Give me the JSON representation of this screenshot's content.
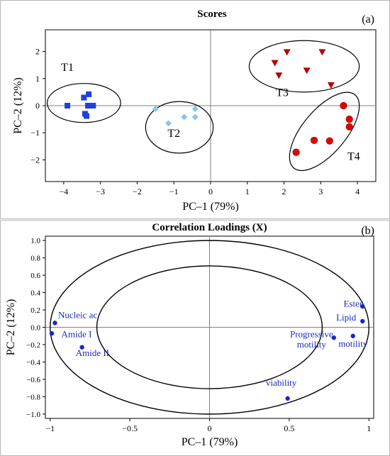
{
  "chart_data": [
    {
      "type": "scatter",
      "title": "Scores",
      "panel_label": "(a)",
      "xlabel": "PC–1 (79%)",
      "ylabel": "PC–2 (12%)",
      "xlim": [
        -4.5,
        4.5
      ],
      "ylim": [
        -2.8,
        2.8
      ],
      "xticks": [
        -4,
        -3,
        -2,
        -1,
        0,
        1,
        2,
        3,
        4
      ],
      "yticks": [
        -2,
        -1,
        0,
        1,
        2
      ],
      "series": [
        {
          "name": "T1",
          "marker": "square",
          "color": "#1f3fe0",
          "x": [
            -3.9,
            -3.45,
            -3.32,
            -3.2,
            -3.42,
            -3.38,
            -3.34
          ],
          "y": [
            0.0,
            0.3,
            0.42,
            0.0,
            -0.3,
            -0.38,
            0.0
          ]
        },
        {
          "name": "T2",
          "marker": "diamond",
          "color": "#8cc4ee",
          "x": [
            -1.5,
            -1.15,
            -0.72,
            -0.42,
            -0.42
          ],
          "y": [
            -0.12,
            -0.65,
            -0.42,
            -0.12,
            -0.42
          ]
        },
        {
          "name": "T3",
          "marker": "triangle-down",
          "color": "#b40000",
          "x": [
            1.75,
            1.86,
            2.08,
            2.62,
            3.04,
            3.28
          ],
          "y": [
            1.58,
            1.12,
            1.98,
            1.3,
            1.98,
            0.76
          ]
        },
        {
          "name": "T4",
          "marker": "circle",
          "color": "#e60000",
          "x": [
            2.33,
            2.82,
            3.24,
            3.62,
            3.78,
            3.78
          ],
          "y": [
            -1.72,
            -1.28,
            -1.3,
            0.0,
            -0.5,
            -0.78
          ]
        }
      ],
      "groups": [
        {
          "label": "T1",
          "cx": -3.45,
          "cy": 0.1,
          "rx": 1.0,
          "ry": 0.72,
          "angle": 0,
          "lx": -3.9,
          "ly": 1.28
        },
        {
          "label": "T2",
          "cx": -0.85,
          "cy": -0.8,
          "rx": 0.92,
          "ry": 0.95,
          "angle": 0,
          "lx": -1.0,
          "ly": -1.15
        },
        {
          "label": "T3",
          "cx": 2.55,
          "cy": 1.45,
          "rx": 1.5,
          "ry": 0.95,
          "angle": 0,
          "lx": 1.95,
          "ly": 0.35
        },
        {
          "label": "T4",
          "cx": 3.1,
          "cy": -0.95,
          "rx": 1.3,
          "ry": 0.8,
          "angle": -50,
          "lx": 3.9,
          "ly": -2.0
        }
      ]
    },
    {
      "type": "scatter",
      "title": "Correlation Loadings (X)",
      "panel_label": "(b)",
      "xlabel": "PC–1 (79%)",
      "ylabel": "PC–2 (12%)",
      "xlim": [
        -1.03,
        1.03
      ],
      "ylim": [
        -1.05,
        1.05
      ],
      "xticks": [
        -1,
        -0.5,
        0,
        0.5,
        1
      ],
      "xtick_labels": [
        "−1",
        "−0.5",
        "0",
        "0.5",
        "1"
      ],
      "yticks": [
        1.0,
        0.8,
        0.6,
        0.4,
        0.2,
        0.0,
        -0.2,
        -0.4,
        -0.6,
        -0.8,
        -1.0
      ],
      "ytick_labels": [
        "1.0",
        "0.8",
        "0.6",
        "0.4",
        "0.2",
        "0.0",
        "−0.2",
        "−0.4",
        "−0.6",
        "−0.8",
        "−1.0"
      ],
      "circles": [
        1.0,
        0.7071
      ],
      "points": [
        {
          "label": "Nucleic ac",
          "x": -0.97,
          "y": 0.05,
          "lx": -0.95,
          "ly": 0.14,
          "anchor": "start"
        },
        {
          "label": "Amide I",
          "x": -0.99,
          "y": -0.07,
          "lx": -0.93,
          "ly": -0.08,
          "anchor": "start"
        },
        {
          "label": "Amide II",
          "x": -0.8,
          "y": -0.23,
          "lx": -0.84,
          "ly": -0.3,
          "anchor": "start"
        },
        {
          "label": "Ester",
          "x": 0.96,
          "y": 0.24,
          "lx": 0.96,
          "ly": 0.27,
          "anchor": "end"
        },
        {
          "label": "Lipid",
          "x": 0.96,
          "y": 0.07,
          "lx": 0.92,
          "ly": 0.11,
          "anchor": "end"
        },
        {
          "label": "Progressive",
          "x": 0.78,
          "y": -0.12,
          "lx": 0.64,
          "ly": -0.08,
          "anchor": "middle"
        },
        {
          "label": "motility",
          "x": 0.9,
          "y": -0.1,
          "lx": 0.64,
          "ly": -0.2,
          "anchor": "middle"
        },
        {
          "label": "motility",
          "x": null,
          "y": null,
          "lx": 0.9,
          "ly": -0.19,
          "anchor": "middle"
        },
        {
          "label": "viability",
          "x": 0.49,
          "y": -0.82,
          "lx": 0.45,
          "ly": -0.64,
          "anchor": "middle"
        }
      ],
      "point_color": "#1a28c8"
    }
  ]
}
